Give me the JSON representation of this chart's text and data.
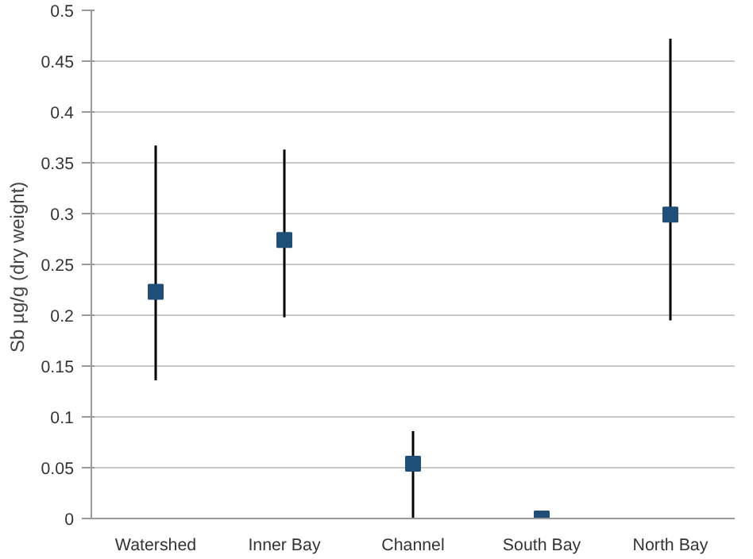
{
  "chart_data": {
    "type": "scatter",
    "ylabel": "Sb  µg/g (dry weight)",
    "categories": [
      "Watershed",
      "Inner Bay",
      "Channel",
      "South Bay",
      "North Bay"
    ],
    "values": [
      0.223,
      0.274,
      0.054,
      0,
      0.299
    ],
    "errors": [
      [
        0.136,
        0.367
      ],
      [
        0.198,
        0.363
      ],
      [
        0,
        0.086
      ],
      null,
      [
        0.195,
        0.472
      ]
    ],
    "color": "#1f4e79",
    "marker": "square",
    "ylim": [
      0,
      0.5
    ],
    "yticks": [
      0,
      0.05,
      0.1,
      0.15,
      0.2,
      0.25,
      0.3,
      0.35,
      0.4,
      0.45,
      0.5
    ],
    "grid": "y"
  }
}
